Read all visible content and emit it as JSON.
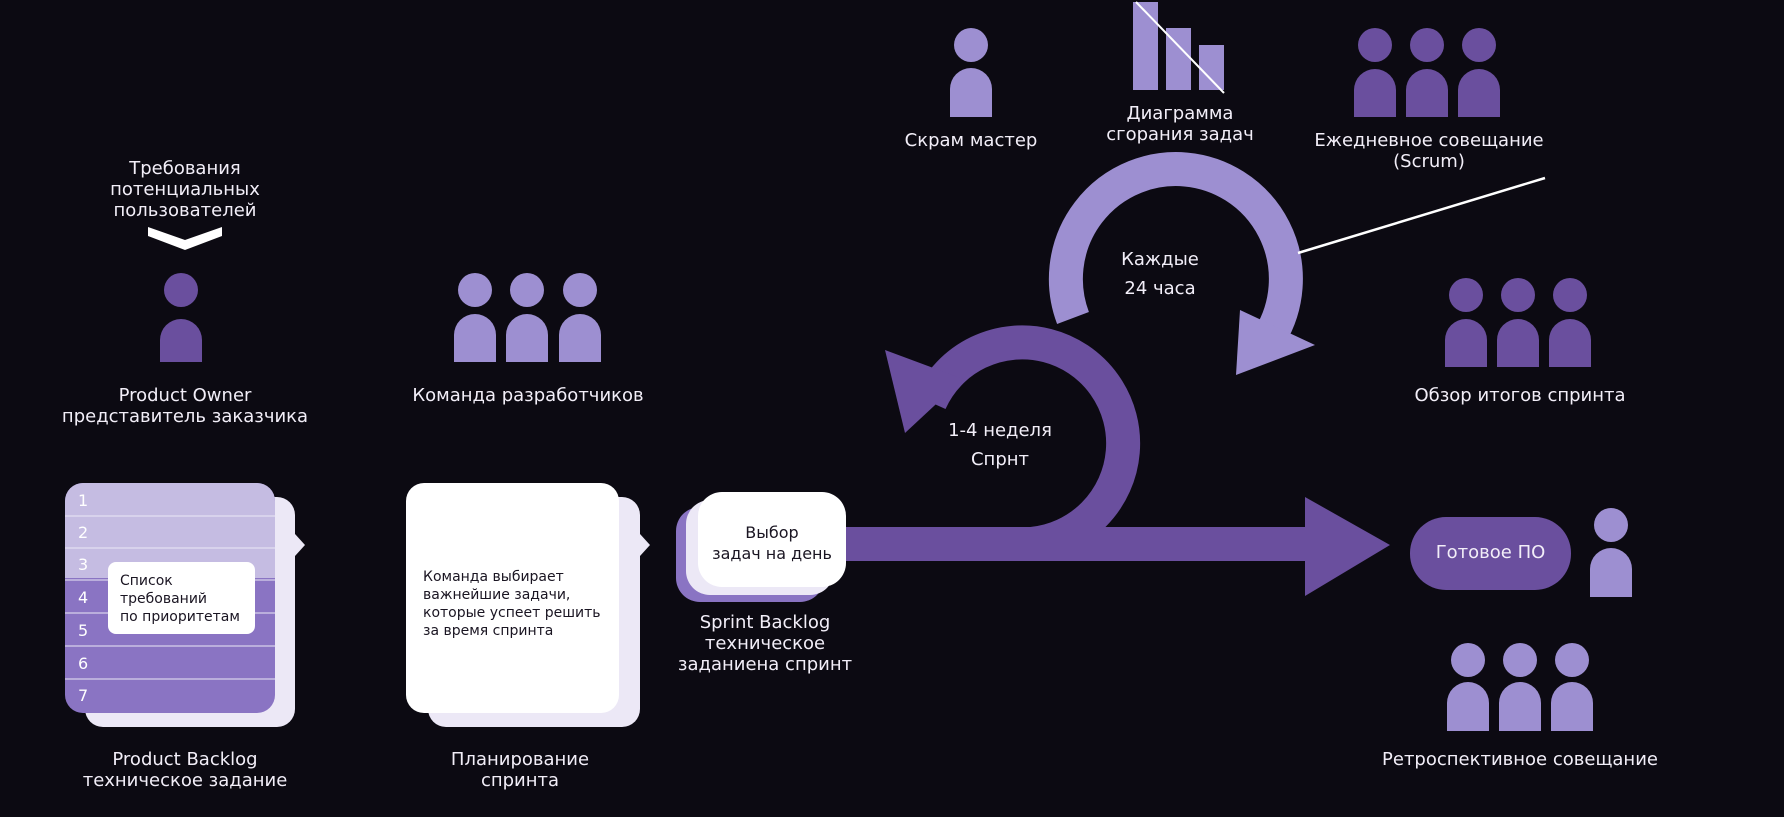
{
  "colors": {
    "background": "#0c0a12",
    "light_purple": "#9d8fd1",
    "mid_purple": "#7b64b6",
    "dark_purple": "#6a4f9e",
    "card_white": "#ffffff",
    "card_lilac": "#ece8f6"
  },
  "requirements": {
    "lines": [
      "Требования",
      "потенциальных",
      "пользователей"
    ]
  },
  "product_owner": {
    "lines": [
      "Product Owner",
      "представитель заказчика"
    ]
  },
  "dev_team": {
    "label": "Команда разработчиков"
  },
  "backlog": {
    "rows": [
      "1",
      "2",
      "3",
      "4",
      "5",
      "6",
      "7"
    ],
    "card_lines": [
      "Список",
      "требований",
      "по приоритетам"
    ],
    "lines": [
      "Product Backlog",
      "техническое задание"
    ]
  },
  "planning": {
    "card_lines": [
      "Команда выбирает",
      "важнейшие задачи,",
      "которые успеет решить",
      "за время спринта"
    ],
    "lines": [
      "Планирование",
      "спринта"
    ]
  },
  "sprint_backlog": {
    "card_lines": [
      "Выбор",
      "задач на день"
    ],
    "lines": [
      "Sprint Backlog",
      "техническое",
      "заданиена спринт"
    ]
  },
  "sprint_cycle": {
    "lines": [
      "1-4 неделя",
      "Спрнт"
    ]
  },
  "daily_cycle": {
    "lines": [
      "Каждые",
      "24 часа"
    ]
  },
  "scrum_master": {
    "label": "Скрам мастер"
  },
  "burndown": {
    "lines": [
      "Диаграмма",
      "сгорания задач"
    ]
  },
  "daily_meeting": {
    "lines": [
      "Ежедневное совещание",
      "(Scrum)"
    ]
  },
  "sprint_review": {
    "label": "Обзор итогов спринта"
  },
  "done_product": {
    "label": "Готовое ПО"
  },
  "retrospective": {
    "label": "Ретроспективное совещание"
  }
}
